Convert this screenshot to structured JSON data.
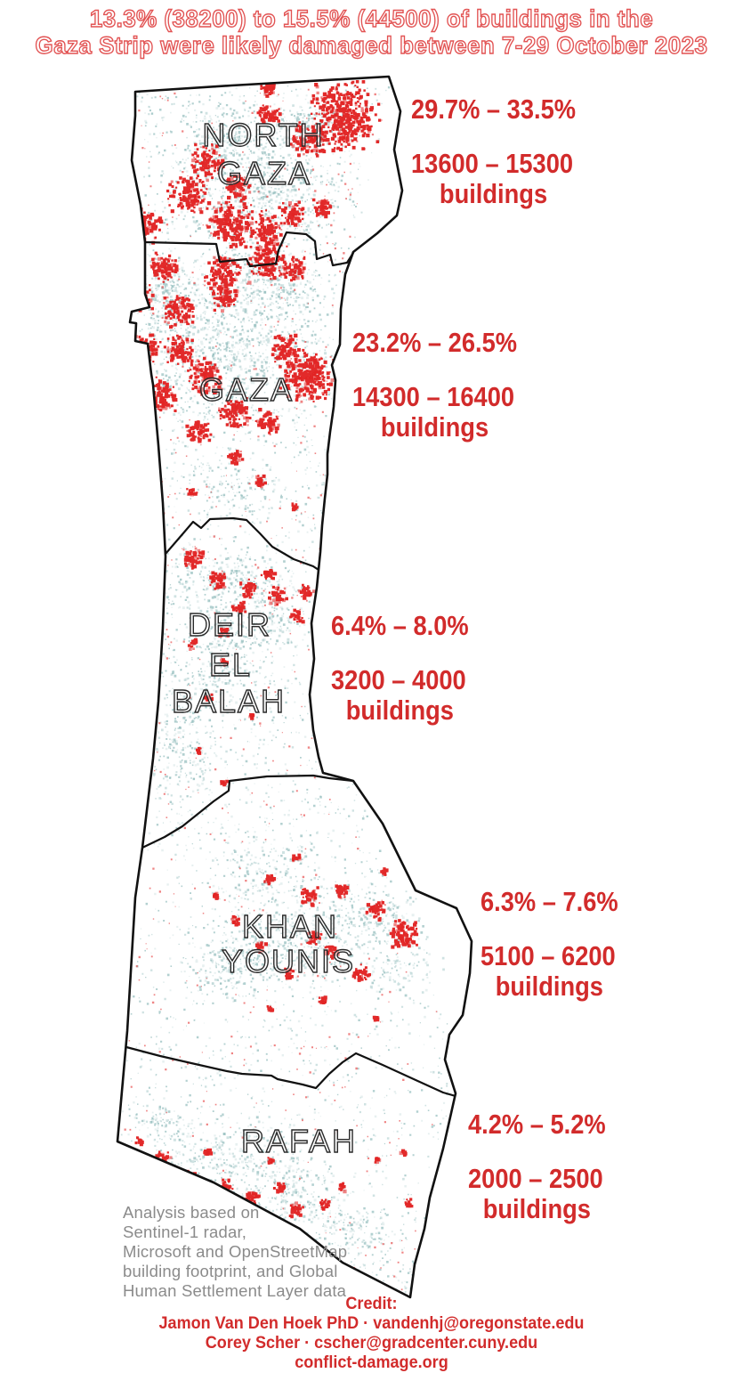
{
  "title": {
    "line1": "13.3% (38200) to 15.5% (44500) of buildings in the",
    "line2": "Gaza Strip were likely damaged between 7-29 October 2023"
  },
  "colors": {
    "accent_red": "#d22b2b",
    "damage_red": "#e01f1f",
    "building_teal": "#93bdbd",
    "outline_black": "#111111",
    "note_gray": "#8b8b8b"
  },
  "regions": [
    {
      "name": "North Gaza",
      "label_lines": [
        "NORTH",
        "GAZA"
      ],
      "pct_range": "29.7% – 33.5%",
      "buildings_range": "13600 – 15300",
      "buildings_label": "buildings"
    },
    {
      "name": "Gaza",
      "label_lines": [
        "GAZA"
      ],
      "pct_range": "23.2% – 26.5%",
      "buildings_range": "14300 – 16400",
      "buildings_label": "buildings"
    },
    {
      "name": "Deir El Balah",
      "label_lines": [
        "DEIR",
        "EL",
        "BALAH"
      ],
      "pct_range": "6.4% – 8.0%",
      "buildings_range": "3200 – 4000",
      "buildings_label": "buildings"
    },
    {
      "name": "Khan Younis",
      "label_lines": [
        "KHAN",
        "YOUNIS"
      ],
      "pct_range": "6.3% – 7.6%",
      "buildings_range": "5100 – 6200",
      "buildings_label": "buildings"
    },
    {
      "name": "Rafah",
      "label_lines": [
        "RAFAH"
      ],
      "pct_range": "4.2% – 5.2%",
      "buildings_range": "2000 – 2500",
      "buildings_label": "buildings"
    }
  ],
  "note": {
    "lines": [
      "Analysis based on",
      "Sentinel-1 radar,",
      "Microsoft and OpenStreetMap",
      "building footprint, and Global",
      "Human Settlement Layer data"
    ]
  },
  "credit": {
    "heading": "Credit:",
    "line1": "Jamon Van Den Hoek PhD · vandenhj@oregonstate.edu",
    "line2": "Corey Scher · cscher@gradcenter.cuny.edu",
    "line3": "conflict-damage.org"
  }
}
